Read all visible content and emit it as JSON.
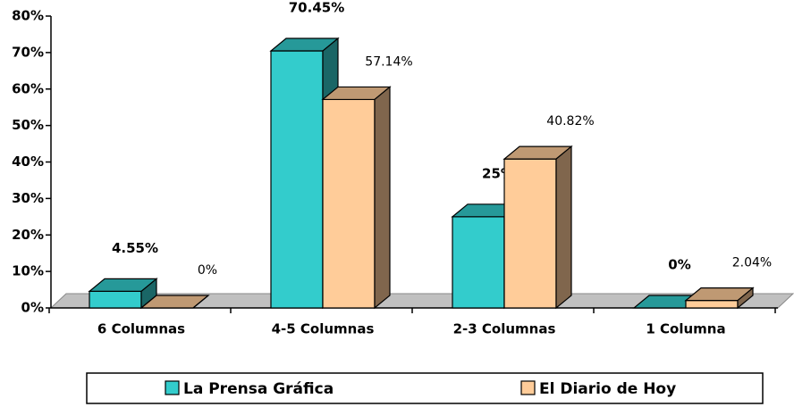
{
  "chart_data": {
    "type": "bar3d",
    "categories": [
      "6 Columnas",
      "4-5 Columnas",
      "2-3 Columnas",
      "1 Columna"
    ],
    "series": [
      {
        "name": "La Prensa Gráfica",
        "color": "#33cccc",
        "values": [
          4.55,
          70.45,
          25,
          0
        ],
        "value_labels": [
          "4.55%",
          "70.45%",
          "25%",
          "0%"
        ]
      },
      {
        "name": "El Diario de Hoy",
        "color": "#ffcc99",
        "values": [
          0,
          57.14,
          40.82,
          2.04
        ],
        "value_labels": [
          "0%",
          "57.14%",
          "40.82%",
          "2.04%"
        ]
      }
    ],
    "ylim": [
      0,
      80
    ],
    "yticks": [
      {
        "value": 0,
        "label": "0%"
      },
      {
        "value": 10,
        "label": "10%"
      },
      {
        "value": 20,
        "label": "20%"
      },
      {
        "value": 30,
        "label": "30%"
      },
      {
        "value": 40,
        "label": "40%"
      },
      {
        "value": 50,
        "label": "50%"
      },
      {
        "value": 60,
        "label": "60%"
      },
      {
        "value": 70,
        "label": "70%"
      },
      {
        "value": 80,
        "label": "80%"
      }
    ],
    "legend": "bottom"
  }
}
